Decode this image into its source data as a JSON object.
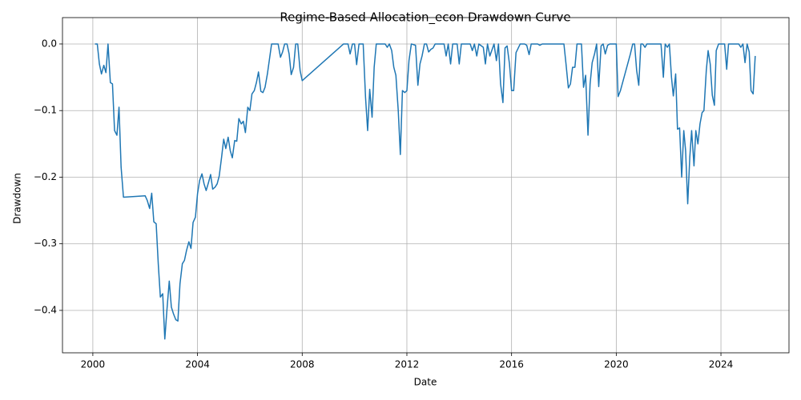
{
  "chart_data": {
    "type": "line",
    "title": "Regime-Based Allocation_econ Drawdown Curve",
    "x_label": "Date",
    "y_label": "Drawdown",
    "xlim": [
      1998.84,
      2026.6
    ],
    "ylim": [
      -0.4637,
      0.0396
    ],
    "xticks": [
      2000,
      2004,
      2008,
      2012,
      2016,
      2020,
      2024
    ],
    "yticks": [
      {
        "value": 0,
        "label": "0.0"
      },
      {
        "value": -0.1,
        "label": "−0.1"
      },
      {
        "value": -0.2,
        "label": "−0.2"
      },
      {
        "value": -0.3,
        "label": "−0.3"
      },
      {
        "value": -0.4,
        "label": "−0.4"
      }
    ],
    "grid": true,
    "x": [
      2000.08,
      2000.17,
      2000.25,
      2000.33,
      2000.42,
      2000.5,
      2000.58,
      2000.67,
      2000.75,
      2000.83,
      2000.92,
      2001.0,
      2001.08,
      2001.17,
      2002.0,
      2002.08,
      2002.17,
      2002.25,
      2002.33,
      2002.42,
      2002.5,
      2002.58,
      2002.67,
      2002.75,
      2002.83,
      2002.92,
      2003.0,
      2003.08,
      2003.17,
      2003.25,
      2003.33,
      2003.42,
      2003.5,
      2003.58,
      2003.67,
      2003.75,
      2003.83,
      2003.92,
      2004.0,
      2004.08,
      2004.17,
      2004.25,
      2004.33,
      2004.42,
      2004.5,
      2004.58,
      2004.67,
      2004.75,
      2004.83,
      2004.92,
      2005.0,
      2005.08,
      2005.17,
      2005.25,
      2005.33,
      2005.42,
      2005.5,
      2005.58,
      2005.67,
      2005.75,
      2005.83,
      2005.92,
      2006.0,
      2006.08,
      2006.17,
      2006.25,
      2006.33,
      2006.42,
      2006.5,
      2006.58,
      2006.67,
      2006.83,
      2007.08,
      2007.17,
      2007.25,
      2007.33,
      2007.42,
      2007.5,
      2007.58,
      2007.67,
      2007.75,
      2007.83,
      2007.92,
      2008.0,
      2009.58,
      2009.75,
      2009.83,
      2009.92,
      2010.0,
      2010.08,
      2010.17,
      2010.33,
      2010.42,
      2010.5,
      2010.58,
      2010.67,
      2010.75,
      2010.83,
      2011.17,
      2011.25,
      2011.33,
      2011.42,
      2011.5,
      2011.58,
      2011.67,
      2011.75,
      2011.83,
      2011.92,
      2012.0,
      2012.08,
      2012.17,
      2012.33,
      2012.42,
      2012.5,
      2012.58,
      2012.67,
      2012.75,
      2012.83,
      2012.92,
      2013.0,
      2013.08,
      2013.42,
      2013.5,
      2013.58,
      2013.67,
      2013.75,
      2013.92,
      2014.0,
      2014.08,
      2014.42,
      2014.5,
      2014.58,
      2014.67,
      2014.75,
      2014.92,
      2015.0,
      2015.08,
      2015.17,
      2015.33,
      2015.42,
      2015.5,
      2015.58,
      2015.67,
      2015.75,
      2015.83,
      2015.92,
      2016.0,
      2016.08,
      2016.17,
      2016.33,
      2016.5,
      2016.58,
      2016.67,
      2016.75,
      2017.0,
      2017.08,
      2017.17,
      2018.0,
      2018.08,
      2018.17,
      2018.25,
      2018.33,
      2018.42,
      2018.5,
      2018.67,
      2018.75,
      2018.83,
      2018.92,
      2019.0,
      2019.08,
      2019.17,
      2019.25,
      2019.33,
      2019.42,
      2019.5,
      2019.58,
      2019.67,
      2019.75,
      2020.0,
      2020.07,
      2020.16,
      2020.54,
      2020.63,
      2020.7,
      2020.78,
      2020.86,
      2020.94,
      2021.01,
      2021.1,
      2021.17,
      2021.71,
      2021.8,
      2021.87,
      2021.95,
      2022.03,
      2022.11,
      2022.18,
      2022.27,
      2022.34,
      2022.42,
      2022.5,
      2022.58,
      2022.65,
      2022.73,
      2022.81,
      2022.88,
      2022.97,
      2023.04,
      2023.12,
      2023.2,
      2023.28,
      2023.35,
      2023.44,
      2023.51,
      2023.59,
      2023.67,
      2023.75,
      2023.82,
      2023.91,
      2024.14,
      2024.22,
      2024.29,
      2024.68,
      2024.76,
      2024.84,
      2024.92,
      2025.0,
      2025.08,
      2025.15,
      2025.23,
      2025.31
    ],
    "series": [
      {
        "color": "#1f77b4",
        "values": [
          0,
          0,
          -0.03,
          -0.045,
          -0.032,
          -0.043,
          0,
          -0.058,
          -0.06,
          -0.13,
          -0.137,
          -0.095,
          -0.185,
          -0.23,
          -0.228,
          -0.235,
          -0.247,
          -0.224,
          -0.267,
          -0.27,
          -0.33,
          -0.38,
          -0.375,
          -0.443,
          -0.4,
          -0.356,
          -0.395,
          -0.405,
          -0.414,
          -0.416,
          -0.36,
          -0.33,
          -0.325,
          -0.31,
          -0.297,
          -0.307,
          -0.268,
          -0.26,
          -0.225,
          -0.205,
          -0.195,
          -0.21,
          -0.22,
          -0.208,
          -0.196,
          -0.218,
          -0.215,
          -0.21,
          -0.198,
          -0.17,
          -0.143,
          -0.157,
          -0.14,
          -0.16,
          -0.171,
          -0.145,
          -0.146,
          -0.112,
          -0.12,
          -0.116,
          -0.133,
          -0.095,
          -0.1,
          -0.075,
          -0.07,
          -0.058,
          -0.042,
          -0.071,
          -0.073,
          -0.065,
          -0.045,
          0,
          0,
          -0.02,
          -0.012,
          0,
          0,
          -0.015,
          -0.046,
          -0.035,
          0,
          0,
          -0.04,
          -0.055,
          0,
          0,
          -0.015,
          0,
          0,
          -0.031,
          0,
          0,
          -0.08,
          -0.13,
          -0.068,
          -0.11,
          -0.035,
          0,
          0,
          -0.005,
          0,
          -0.01,
          -0.035,
          -0.047,
          -0.1,
          -0.166,
          -0.07,
          -0.073,
          -0.07,
          -0.025,
          0,
          -0.002,
          -0.062,
          -0.03,
          -0.018,
          0,
          0,
          -0.012,
          -0.008,
          -0.006,
          0,
          0,
          -0.018,
          0,
          -0.03,
          0,
          0,
          -0.03,
          0,
          0,
          -0.01,
          0,
          -0.018,
          0,
          -0.005,
          -0.03,
          0,
          -0.018,
          0,
          -0.025,
          0,
          -0.06,
          -0.088,
          -0.006,
          -0.003,
          -0.03,
          -0.07,
          -0.07,
          -0.013,
          0,
          0,
          -0.002,
          -0.016,
          0,
          0,
          -0.002,
          0,
          0,
          -0.03,
          -0.066,
          -0.06,
          -0.035,
          -0.035,
          0,
          0,
          -0.065,
          -0.047,
          -0.137,
          -0.06,
          -0.028,
          -0.015,
          0,
          -0.064,
          -0.003,
          0,
          -0.015,
          -0.002,
          0,
          0,
          -0.079,
          -0.07,
          -0.015,
          0,
          0,
          -0.04,
          -0.062,
          0,
          0,
          -0.005,
          0,
          0,
          -0.05,
          0,
          -0.005,
          0,
          -0.05,
          -0.078,
          -0.045,
          -0.128,
          -0.126,
          -0.2,
          -0.13,
          -0.16,
          -0.24,
          -0.17,
          -0.13,
          -0.183,
          -0.13,
          -0.15,
          -0.12,
          -0.103,
          -0.1,
          -0.04,
          -0.01,
          -0.03,
          -0.077,
          -0.092,
          -0.01,
          0,
          0,
          -0.038,
          0,
          0,
          -0.005,
          0,
          -0.028,
          0,
          -0.012,
          -0.07,
          -0.075,
          -0.018
        ]
      }
    ]
  }
}
